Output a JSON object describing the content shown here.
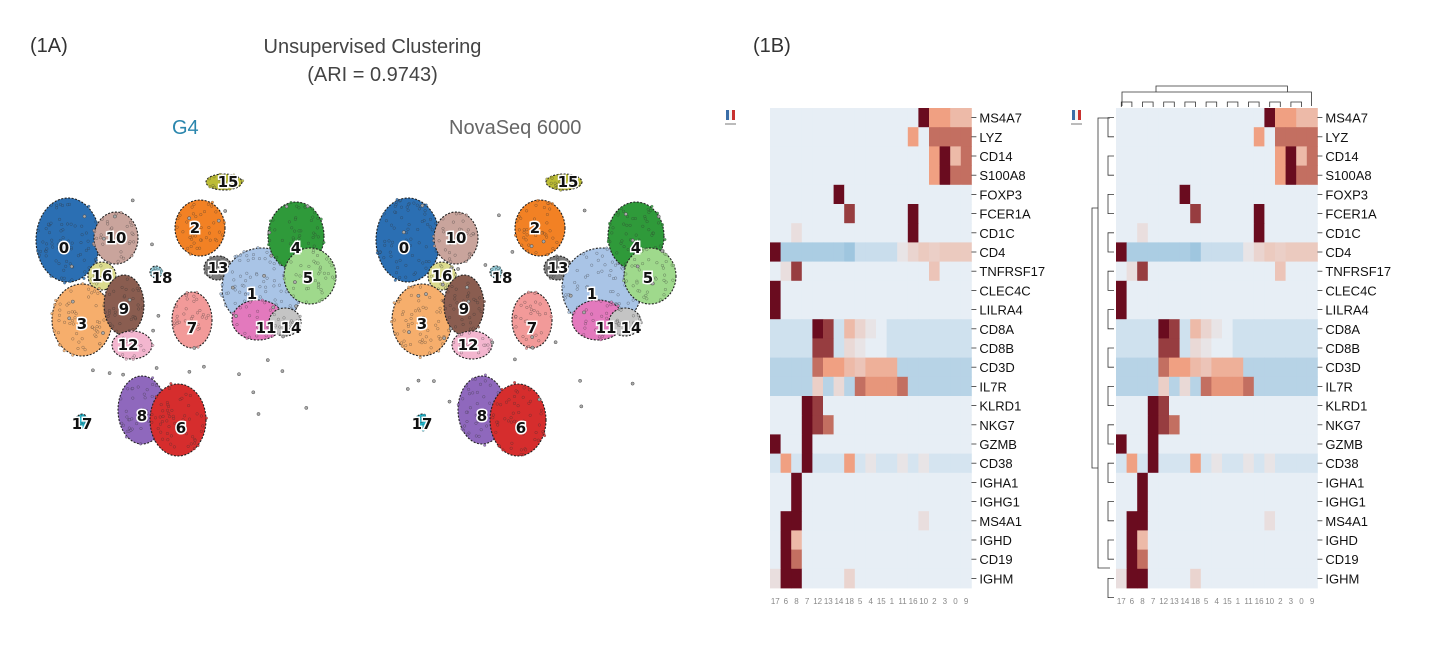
{
  "panels": {
    "a_label": "(1A)",
    "b_label": "(1B)"
  },
  "figure_a": {
    "title_line1": "Unsupervised Clustering",
    "title_line2": "(ARI = 0.9743)",
    "left_title": "G4",
    "right_title": "NovaSeq 6000",
    "clusters": [
      {
        "id": "0",
        "color": "#2b6fb3"
      },
      {
        "id": "1",
        "color": "#a9c4e6"
      },
      {
        "id": "2",
        "color": "#f28124"
      },
      {
        "id": "3",
        "color": "#f6ae6c"
      },
      {
        "id": "4",
        "color": "#2f9a3a"
      },
      {
        "id": "5",
        "color": "#9fd98c"
      },
      {
        "id": "6",
        "color": "#d62d2d"
      },
      {
        "id": "7",
        "color": "#f29a99"
      },
      {
        "id": "8",
        "color": "#8f68bd"
      },
      {
        "id": "9",
        "color": "#8a5d50"
      },
      {
        "id": "10",
        "color": "#c9a49c"
      },
      {
        "id": "11",
        "color": "#e379bd"
      },
      {
        "id": "12",
        "color": "#f3b6cf"
      },
      {
        "id": "13",
        "color": "#7d7d7d"
      },
      {
        "id": "14",
        "color": "#c4c4c4"
      },
      {
        "id": "15",
        "color": "#bcbc35"
      },
      {
        "id": "16",
        "color": "#dbdb8d"
      },
      {
        "id": "17",
        "color": "#1fb6ce"
      },
      {
        "id": "18",
        "color": "#9ad4e1"
      }
    ]
  },
  "figure_b": {
    "genes": [
      "MS4A7",
      "LYZ",
      "CD14",
      "S100A8",
      "FOXP3",
      "FCER1A",
      "CD1C",
      "CD4",
      "TNFRSF17",
      "CLEC4C",
      "LILRA4",
      "CD8A",
      "CD8B",
      "CD3D",
      "IL7R",
      "KLRD1",
      "NKG7",
      "GZMB",
      "CD38",
      "IGHA1",
      "IGHG1",
      "MS4A1",
      "IGHD",
      "CD19",
      "IGHM"
    ],
    "columns_left": [
      "17",
      "6",
      "8",
      "7",
      "12",
      "13",
      "14",
      "18",
      "5",
      "4",
      "15",
      "1",
      "11",
      "16",
      "10",
      "2",
      "3",
      "0",
      "9"
    ],
    "columns_right": [
      "17",
      "6",
      "8",
      "7",
      "12",
      "13",
      "14",
      "18",
      "5",
      "4",
      "15",
      "1",
      "11",
      "16",
      "10",
      "2",
      "3",
      "0",
      "9"
    ],
    "colors": {
      "low": "#9fc6df",
      "mid": "#e7eef5",
      "high": "#6a0c1f"
    }
  },
  "chart_data": [
    {
      "type": "heatmap",
      "title": "",
      "rows": [
        "MS4A7",
        "LYZ",
        "CD14",
        "S100A8",
        "FOXP3",
        "FCER1A",
        "CD1C",
        "CD4",
        "TNFRSF17",
        "CLEC4C",
        "LILRA4",
        "CD8A",
        "CD8B",
        "CD3D",
        "IL7R",
        "KLRD1",
        "NKG7",
        "GZMB",
        "CD38",
        "IGHA1",
        "IGHG1",
        "MS4A1",
        "IGHD",
        "CD19",
        "IGHM"
      ],
      "columns": [
        "17",
        "6",
        "8",
        "7",
        "12",
        "13",
        "14",
        "18",
        "5",
        "4",
        "15",
        "1",
        "11",
        "16",
        "10",
        "2",
        "3",
        "0",
        "9"
      ],
      "values": [
        [
          0,
          0,
          0,
          0,
          0,
          0,
          0,
          0,
          0,
          0,
          0,
          0,
          0,
          0,
          3,
          1.5,
          1.5,
          1,
          1
        ],
        [
          0,
          0,
          0,
          0,
          0,
          0,
          0,
          0,
          0,
          0,
          0,
          0,
          0,
          1.5,
          0,
          2,
          2,
          2,
          2
        ],
        [
          0,
          0,
          0,
          0,
          0,
          0,
          0,
          0,
          0,
          0,
          0,
          0,
          0,
          0,
          0,
          1.5,
          3,
          1,
          2
        ],
        [
          0,
          0,
          0,
          0,
          0,
          0,
          0,
          0,
          0,
          0,
          0,
          0,
          0,
          0,
          0,
          1.5,
          3,
          2,
          2
        ],
        [
          0,
          0,
          0,
          0,
          0,
          0,
          3,
          0,
          0,
          0,
          0,
          0,
          0,
          0,
          0,
          0,
          0,
          0,
          0
        ],
        [
          0,
          0,
          0,
          0,
          0,
          0,
          0,
          2.5,
          0,
          0,
          0,
          0,
          0,
          3,
          0,
          0,
          0,
          0,
          0
        ],
        [
          0,
          0,
          0.3,
          0,
          0,
          0,
          0,
          0,
          0,
          0,
          0,
          0,
          0,
          3,
          0,
          0,
          0,
          0,
          0
        ],
        [
          3,
          -1,
          -1,
          -1,
          -1,
          -1,
          -1,
          -1.2,
          -0.5,
          -0.5,
          -0.5,
          -0.5,
          0.2,
          0.5,
          0.7,
          0.6,
          0.7,
          0.7,
          0.7
        ],
        [
          0,
          0.3,
          2.5,
          0,
          0,
          0,
          0,
          0,
          0,
          0,
          0,
          0,
          0,
          0,
          0,
          0.8,
          0,
          0,
          0
        ],
        [
          3,
          0,
          0,
          0,
          0,
          0,
          0,
          0,
          0,
          0,
          0,
          0,
          0,
          0,
          0,
          0,
          0,
          0,
          0
        ],
        [
          3,
          0,
          0,
          0,
          0,
          0,
          0,
          0,
          0,
          0,
          0,
          0,
          0,
          0,
          0,
          0,
          0,
          0,
          0
        ],
        [
          -0.4,
          -0.4,
          -0.4,
          -0.4,
          3,
          2.5,
          -0.4,
          1,
          0.5,
          0.2,
          0,
          -0.4,
          -0.4,
          -0.4,
          -0.4,
          -0.4,
          -0.4,
          -0.4,
          -0.4
        ],
        [
          -0.4,
          -0.4,
          -0.4,
          -0.4,
          2.5,
          2.5,
          -0.4,
          0.4,
          0.2,
          0,
          0,
          -0.4,
          -0.4,
          -0.4,
          -0.4,
          -0.4,
          -0.4,
          -0.4,
          -0.4
        ],
        [
          -0.8,
          -0.8,
          -0.8,
          -0.8,
          2,
          1.5,
          1.5,
          1,
          0.8,
          1.2,
          1.2,
          1.2,
          -0.8,
          -0.8,
          -0.8,
          -0.8,
          -0.8,
          -0.8,
          -0.8
        ],
        [
          -0.8,
          -0.8,
          -0.8,
          -0.8,
          0.6,
          -0.8,
          0.4,
          -0.8,
          2,
          1.6,
          1.6,
          1.6,
          2,
          -0.8,
          -0.8,
          -0.8,
          -0.8,
          -0.8,
          -0.8
        ],
        [
          0,
          0,
          0,
          3,
          2.5,
          0,
          0,
          0,
          0,
          0,
          0,
          0,
          0,
          0,
          0,
          0,
          0,
          0,
          0
        ],
        [
          0,
          0,
          0,
          3,
          2.5,
          2,
          0,
          0,
          0,
          0,
          0,
          0,
          0,
          0,
          0,
          0,
          0,
          0,
          0
        ],
        [
          3,
          0,
          0,
          3,
          0,
          0,
          0,
          0,
          0,
          0,
          0,
          0,
          0,
          0,
          0,
          0,
          0,
          0,
          0
        ],
        [
          -0.3,
          1.5,
          -0.3,
          3,
          -0.3,
          -0.3,
          -0.3,
          1.5,
          -0.3,
          0.2,
          -0.3,
          -0.3,
          0.2,
          -0.3,
          0.2,
          -0.3,
          -0.3,
          -0.3,
          -0.3
        ],
        [
          0,
          0,
          3,
          0,
          0,
          0,
          0,
          0,
          0,
          0,
          0,
          0,
          0,
          0,
          0,
          0,
          0,
          0,
          0
        ],
        [
          0,
          0,
          3,
          0,
          0,
          0,
          0,
          0,
          0,
          0,
          0,
          0,
          0,
          0,
          0,
          0,
          0,
          0,
          0
        ],
        [
          0,
          3,
          3,
          0,
          0,
          0,
          0,
          0,
          0,
          0,
          0,
          0,
          0,
          0,
          0.3,
          0,
          0,
          0,
          0
        ],
        [
          0,
          3,
          1,
          0,
          0,
          0,
          0,
          0,
          0,
          0,
          0,
          0,
          0,
          0,
          0,
          0,
          0,
          0,
          0
        ],
        [
          0,
          3,
          2,
          0,
          0,
          0,
          0,
          0,
          0,
          0,
          0,
          0,
          0,
          0,
          0,
          0,
          0,
          0,
          0
        ],
        [
          0.3,
          3,
          3,
          0,
          0,
          0,
          0,
          0.5,
          0,
          0,
          0,
          0,
          0,
          0,
          0,
          0,
          0,
          0,
          0
        ]
      ]
    },
    {
      "type": "heatmap",
      "title": "",
      "rows": [
        "MS4A7",
        "LYZ",
        "CD14",
        "S100A8",
        "FOXP3",
        "FCER1A",
        "CD1C",
        "CD4",
        "TNFRSF17",
        "CLEC4C",
        "LILRA4",
        "CD8A",
        "CD8B",
        "CD3D",
        "IL7R",
        "KLRD1",
        "NKG7",
        "GZMB",
        "CD38",
        "IGHA1",
        "IGHG1",
        "MS4A1",
        "IGHD",
        "CD19",
        "IGHM"
      ],
      "columns": [
        "17",
        "6",
        "8",
        "7",
        "12",
        "13",
        "14",
        "18",
        "5",
        "4",
        "15",
        "1",
        "11",
        "16",
        "10",
        "2",
        "3",
        "0",
        "9"
      ],
      "values": [
        [
          0,
          0,
          0,
          0,
          0,
          0,
          0,
          0,
          0,
          0,
          0,
          0,
          0,
          0,
          3,
          1.5,
          1.5,
          1,
          1
        ],
        [
          0,
          0,
          0,
          0,
          0,
          0,
          0,
          0,
          0,
          0,
          0,
          0,
          0,
          1.5,
          0,
          2,
          2,
          2,
          2
        ],
        [
          0,
          0,
          0,
          0,
          0,
          0,
          0,
          0,
          0,
          0,
          0,
          0,
          0,
          0,
          0,
          1.5,
          3,
          1,
          2
        ],
        [
          0,
          0,
          0,
          0,
          0,
          0,
          0,
          0,
          0,
          0,
          0,
          0,
          0,
          0,
          0,
          1.5,
          3,
          2,
          2
        ],
        [
          0,
          0,
          0,
          0,
          0,
          0,
          3,
          0,
          0,
          0,
          0,
          0,
          0,
          0,
          0,
          0,
          0,
          0,
          0
        ],
        [
          0,
          0,
          0,
          0,
          0,
          0,
          0,
          2.5,
          0,
          0,
          0,
          0,
          0,
          3,
          0,
          0,
          0,
          0,
          0
        ],
        [
          0,
          0,
          0.3,
          0,
          0,
          0,
          0,
          0,
          0,
          0,
          0,
          0,
          0,
          3,
          0,
          0,
          0,
          0,
          0
        ],
        [
          3,
          -1,
          -1,
          -1,
          -1,
          -1,
          -1,
          -1.2,
          -0.5,
          -0.5,
          -0.5,
          -0.5,
          0.2,
          0.5,
          0.7,
          0.6,
          0.7,
          0.7,
          0.7
        ],
        [
          0,
          0.3,
          2.5,
          0,
          0,
          0,
          0,
          0,
          0,
          0,
          0,
          0,
          0,
          0,
          0,
          0.8,
          0,
          0,
          0
        ],
        [
          3,
          0,
          0,
          0,
          0,
          0,
          0,
          0,
          0,
          0,
          0,
          0,
          0,
          0,
          0,
          0,
          0,
          0,
          0
        ],
        [
          3,
          0,
          0,
          0,
          0,
          0,
          0,
          0,
          0,
          0,
          0,
          0,
          0,
          0,
          0,
          0,
          0,
          0,
          0
        ],
        [
          -0.4,
          -0.4,
          -0.4,
          -0.4,
          3,
          2.5,
          -0.4,
          1,
          0.5,
          0.2,
          0,
          -0.4,
          -0.4,
          -0.4,
          -0.4,
          -0.4,
          -0.4,
          -0.4,
          -0.4
        ],
        [
          -0.4,
          -0.4,
          -0.4,
          -0.4,
          2.5,
          2.5,
          -0.4,
          0.4,
          0.2,
          0,
          0,
          -0.4,
          -0.4,
          -0.4,
          -0.4,
          -0.4,
          -0.4,
          -0.4,
          -0.4
        ],
        [
          -0.8,
          -0.8,
          -0.8,
          -0.8,
          2,
          1.5,
          1.5,
          1,
          0.8,
          1.2,
          1.2,
          1.2,
          -0.8,
          -0.8,
          -0.8,
          -0.8,
          -0.8,
          -0.8,
          -0.8
        ],
        [
          -0.8,
          -0.8,
          -0.8,
          -0.8,
          0.6,
          -0.8,
          0.4,
          -0.8,
          2,
          1.6,
          1.6,
          1.6,
          2,
          -0.8,
          -0.8,
          -0.8,
          -0.8,
          -0.8,
          -0.8
        ],
        [
          0,
          0,
          0,
          3,
          2.5,
          0,
          0,
          0,
          0,
          0,
          0,
          0,
          0,
          0,
          0,
          0,
          0,
          0,
          0
        ],
        [
          0,
          0,
          0,
          3,
          2.5,
          2,
          0,
          0,
          0,
          0,
          0,
          0,
          0,
          0,
          0,
          0,
          0,
          0,
          0
        ],
        [
          3,
          0,
          0,
          3,
          0,
          0,
          0,
          0,
          0,
          0,
          0,
          0,
          0,
          0,
          0,
          0,
          0,
          0,
          0
        ],
        [
          -0.3,
          1.5,
          -0.3,
          3,
          -0.3,
          -0.3,
          -0.3,
          1.5,
          -0.3,
          0.2,
          -0.3,
          -0.3,
          0.2,
          -0.3,
          0.2,
          -0.3,
          -0.3,
          -0.3,
          -0.3
        ],
        [
          0,
          0,
          3,
          0,
          0,
          0,
          0,
          0,
          0,
          0,
          0,
          0,
          0,
          0,
          0,
          0,
          0,
          0,
          0
        ],
        [
          0,
          0,
          3,
          0,
          0,
          0,
          0,
          0,
          0,
          0,
          0,
          0,
          0,
          0,
          0,
          0,
          0,
          0,
          0
        ],
        [
          0,
          3,
          3,
          0,
          0,
          0,
          0,
          0,
          0,
          0,
          0,
          0,
          0,
          0,
          0.3,
          0,
          0,
          0,
          0
        ],
        [
          0,
          3,
          1,
          0,
          0,
          0,
          0,
          0,
          0,
          0,
          0,
          0,
          0,
          0,
          0,
          0,
          0,
          0,
          0
        ],
        [
          0,
          3,
          2,
          0,
          0,
          0,
          0,
          0,
          0,
          0,
          0,
          0,
          0,
          0,
          0,
          0,
          0,
          0,
          0
        ],
        [
          0.3,
          3,
          3,
          0,
          0,
          0,
          0,
          0.5,
          0,
          0,
          0,
          0,
          0,
          0,
          0,
          0,
          0,
          0,
          0
        ]
      ]
    }
  ]
}
